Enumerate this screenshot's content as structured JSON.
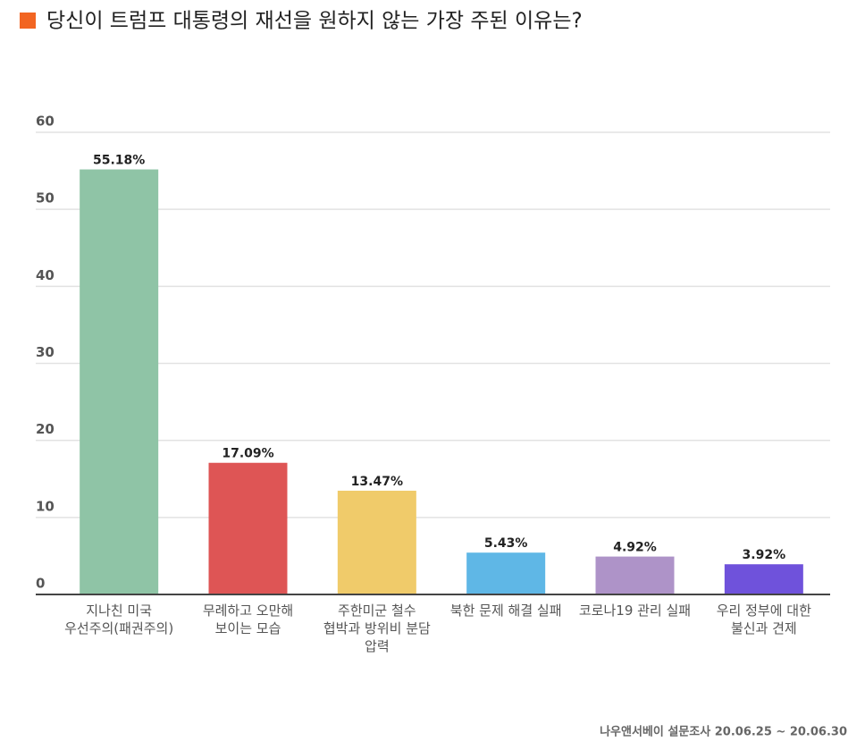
{
  "chart_data": {
    "type": "bar",
    "title": "당신이 트럼프 대통령의 재선을 원하지 않는 가장 주된 이유는?",
    "categories": [
      "지나친 미국 우선주의(패권주의)",
      "무례하고 오만해 보이는 모습",
      "주한미군 철수 협박과 방위비 분담 압력",
      "북한 문제 해결 실패",
      "코로나19 관리 실패",
      "우리 정부에 대한 불신과 견제"
    ],
    "values": [
      55.18,
      17.09,
      13.47,
      5.43,
      4.92,
      3.92
    ],
    "value_labels": [
      "55.18%",
      "17.09%",
      "13.47%",
      "5.43%",
      "4.92%",
      "3.92%"
    ],
    "colors": [
      "#8fc4a6",
      "#de5555",
      "#f0cb6a",
      "#5fb7e6",
      "#ae93c8",
      "#6f52db"
    ],
    "ylim": [
      0,
      60
    ],
    "yticks": [
      0,
      10,
      20,
      30,
      40,
      50,
      60
    ],
    "grid": true,
    "source": "나우앤서베이 설문조사 20.06.25 ~ 20.06.30"
  }
}
